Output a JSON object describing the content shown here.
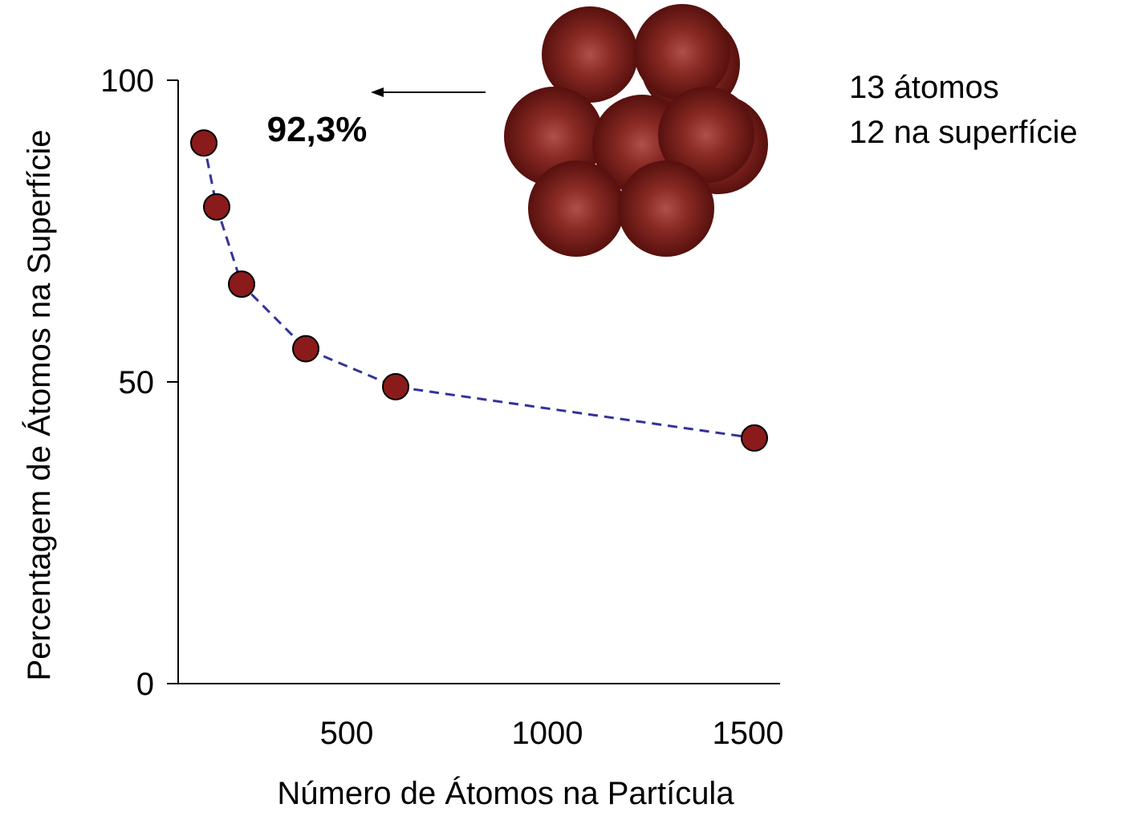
{
  "chart_data": {
    "type": "scatter",
    "x_label": "Número de Átomos na Partícula",
    "y_label": "Percentagem de Átomos na Superfície",
    "annotation": "92,3%",
    "legend_lines": [
      "13 átomos",
      "12 na superfície"
    ],
    "x": [
      64,
      96,
      158,
      318,
      542,
      1436
    ],
    "values": [
      89.6,
      79,
      66.2,
      55.5,
      49.2,
      40.7
    ],
    "color": "#8b1a1a",
    "line_color": "#333399",
    "xlim": [
      0,
      1500
    ],
    "ylim": [
      0,
      100
    ],
    "xticks": [
      500,
      1000,
      1500
    ],
    "yticks": [
      0,
      50,
      100
    ]
  }
}
